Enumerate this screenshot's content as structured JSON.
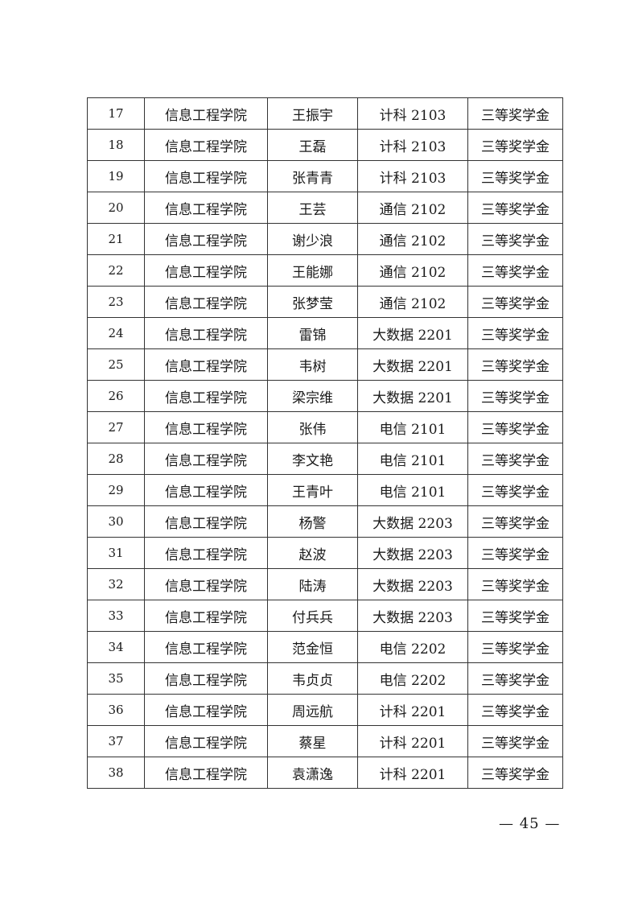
{
  "table": {
    "rows": [
      [
        "17",
        "信息工程学院",
        "王振宇",
        "计科 2103",
        "三等奖学金"
      ],
      [
        "18",
        "信息工程学院",
        "王磊",
        "计科 2103",
        "三等奖学金"
      ],
      [
        "19",
        "信息工程学院",
        "张青青",
        "计科 2103",
        "三等奖学金"
      ],
      [
        "20",
        "信息工程学院",
        "王芸",
        "通信 2102",
        "三等奖学金"
      ],
      [
        "21",
        "信息工程学院",
        "谢少浪",
        "通信 2102",
        "三等奖学金"
      ],
      [
        "22",
        "信息工程学院",
        "王能娜",
        "通信 2102",
        "三等奖学金"
      ],
      [
        "23",
        "信息工程学院",
        "张梦莹",
        "通信 2102",
        "三等奖学金"
      ],
      [
        "24",
        "信息工程学院",
        "雷锦",
        "大数据 2201",
        "三等奖学金"
      ],
      [
        "25",
        "信息工程学院",
        "韦树",
        "大数据 2201",
        "三等奖学金"
      ],
      [
        "26",
        "信息工程学院",
        "梁宗维",
        "大数据 2201",
        "三等奖学金"
      ],
      [
        "27",
        "信息工程学院",
        "张伟",
        "电信 2101",
        "三等奖学金"
      ],
      [
        "28",
        "信息工程学院",
        "李文艳",
        "电信 2101",
        "三等奖学金"
      ],
      [
        "29",
        "信息工程学院",
        "王青叶",
        "电信 2101",
        "三等奖学金"
      ],
      [
        "30",
        "信息工程学院",
        "杨警",
        "大数据 2203",
        "三等奖学金"
      ],
      [
        "31",
        "信息工程学院",
        "赵波",
        "大数据 2203",
        "三等奖学金"
      ],
      [
        "32",
        "信息工程学院",
        "陆涛",
        "大数据 2203",
        "三等奖学金"
      ],
      [
        "33",
        "信息工程学院",
        "付兵兵",
        "大数据 2203",
        "三等奖学金"
      ],
      [
        "34",
        "信息工程学院",
        "范金恒",
        "电信 2202",
        "三等奖学金"
      ],
      [
        "35",
        "信息工程学院",
        "韦贞贞",
        "电信 2202",
        "三等奖学金"
      ],
      [
        "36",
        "信息工程学院",
        "周远航",
        "计科 2201",
        "三等奖学金"
      ],
      [
        "37",
        "信息工程学院",
        "蔡星",
        "计科 2201",
        "三等奖学金"
      ],
      [
        "38",
        "信息工程学院",
        "袁潇逸",
        "计科 2201",
        "三等奖学金"
      ]
    ]
  },
  "footer": {
    "page_number": "— 45 —"
  }
}
